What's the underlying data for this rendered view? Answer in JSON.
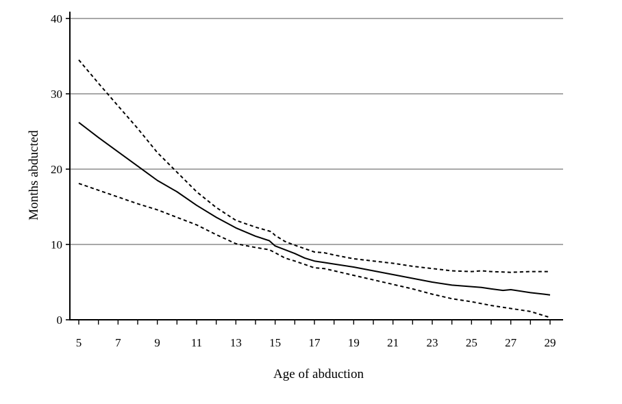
{
  "chart_data": {
    "type": "line",
    "xlabel": "Age of abduction",
    "ylabel": "Months abducted",
    "xlim": [
      5,
      29
    ],
    "ylim": [
      0,
      40
    ],
    "x_ticks": [
      5,
      7,
      9,
      11,
      13,
      15,
      17,
      19,
      21,
      23,
      25,
      27,
      29
    ],
    "y_ticks": [
      0,
      10,
      20,
      30,
      40
    ],
    "grid": "horizontal",
    "legend": "none",
    "series": [
      {
        "style": "solid",
        "color": "#000000",
        "points": [
          [
            5,
            26.2
          ],
          [
            6,
            24.2
          ],
          [
            7,
            22.3
          ],
          [
            8,
            20.4
          ],
          [
            9,
            18.5
          ],
          [
            10,
            17.0
          ],
          [
            11,
            15.2
          ],
          [
            12,
            13.6
          ],
          [
            13,
            12.2
          ],
          [
            14,
            11.1
          ],
          [
            14.7,
            10.5
          ],
          [
            15,
            9.8
          ],
          [
            15.5,
            9.3
          ],
          [
            16,
            8.8
          ],
          [
            16.5,
            8.2
          ],
          [
            17,
            7.8
          ],
          [
            17.5,
            7.6
          ],
          [
            18,
            7.4
          ],
          [
            19,
            7.0
          ],
          [
            20,
            6.5
          ],
          [
            21,
            6.0
          ],
          [
            22,
            5.5
          ],
          [
            23,
            5.0
          ],
          [
            24,
            4.6
          ],
          [
            25,
            4.4
          ],
          [
            25.5,
            4.3
          ],
          [
            26,
            4.1
          ],
          [
            26.6,
            3.9
          ],
          [
            27,
            4.0
          ],
          [
            28,
            3.6
          ],
          [
            28.7,
            3.4
          ],
          [
            29,
            3.3
          ]
        ]
      },
      {
        "style": "dashed",
        "color": "#000000",
        "points": [
          [
            5,
            34.5
          ],
          [
            6,
            31.4
          ],
          [
            7,
            28.4
          ],
          [
            8,
            25.4
          ],
          [
            9,
            22.2
          ],
          [
            10,
            19.6
          ],
          [
            11,
            17.0
          ],
          [
            12,
            14.9
          ],
          [
            13,
            13.2
          ],
          [
            14,
            12.3
          ],
          [
            14.8,
            11.7
          ],
          [
            15,
            11.2
          ],
          [
            15.5,
            10.4
          ],
          [
            16,
            9.9
          ],
          [
            17,
            9.0
          ],
          [
            17.5,
            8.9
          ],
          [
            18,
            8.6
          ],
          [
            19,
            8.1
          ],
          [
            20,
            7.8
          ],
          [
            21,
            7.5
          ],
          [
            22,
            7.1
          ],
          [
            23,
            6.8
          ],
          [
            24,
            6.5
          ],
          [
            25,
            6.4
          ],
          [
            25.5,
            6.5
          ],
          [
            26,
            6.4
          ],
          [
            27,
            6.3
          ],
          [
            28,
            6.4
          ],
          [
            29,
            6.4
          ]
        ]
      },
      {
        "style": "dashed",
        "color": "#000000",
        "points": [
          [
            5,
            18.1
          ],
          [
            6,
            17.2
          ],
          [
            7,
            16.3
          ],
          [
            8,
            15.4
          ],
          [
            9,
            14.6
          ],
          [
            10,
            13.6
          ],
          [
            11,
            12.6
          ],
          [
            12,
            11.3
          ],
          [
            13,
            10.1
          ],
          [
            14,
            9.6
          ],
          [
            14.7,
            9.3
          ],
          [
            15,
            8.9
          ],
          [
            15.5,
            8.2
          ],
          [
            16,
            7.8
          ],
          [
            17,
            6.9
          ],
          [
            17.5,
            6.8
          ],
          [
            18,
            6.5
          ],
          [
            19,
            5.9
          ],
          [
            20,
            5.3
          ],
          [
            21,
            4.7
          ],
          [
            22,
            4.1
          ],
          [
            23,
            3.4
          ],
          [
            24,
            2.8
          ],
          [
            25,
            2.4
          ],
          [
            26,
            1.9
          ],
          [
            27,
            1.5
          ],
          [
            28,
            1.1
          ],
          [
            29,
            0.3
          ]
        ]
      }
    ]
  }
}
